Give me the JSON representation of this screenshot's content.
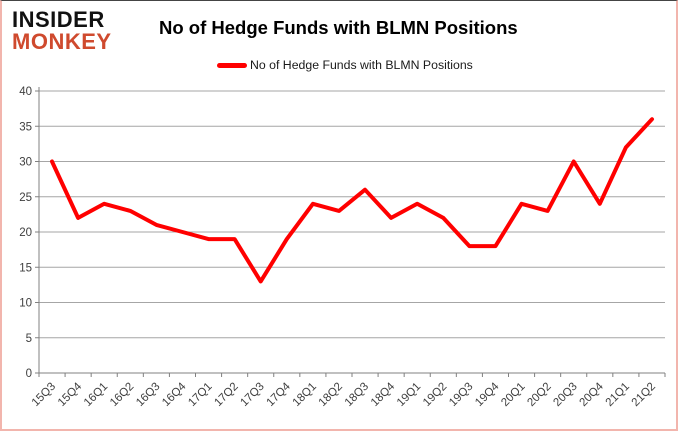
{
  "logo": {
    "line1": "INSIDER",
    "line2": "MONKEY",
    "accent_color": "#cf4a2e"
  },
  "header": {
    "title": "No of Hedge Funds with BLMN Positions"
  },
  "legend": {
    "label": "No of Hedge Funds with BLMN Positions",
    "color": "#ff0000",
    "position": "top"
  },
  "chart_data": {
    "type": "line",
    "title": "No of Hedge Funds with BLMN Positions",
    "series": [
      {
        "name": "No of Hedge Funds with BLMN Positions",
        "values": [
          30,
          22,
          24,
          23,
          21,
          20,
          19,
          19,
          13,
          19,
          24,
          23,
          26,
          22,
          24,
          22,
          18,
          18,
          24,
          23,
          30,
          24,
          32,
          36
        ]
      }
    ],
    "categories": [
      "15Q3",
      "15Q4",
      "16Q1",
      "16Q2",
      "16Q3",
      "16Q4",
      "17Q1",
      "17Q2",
      "17Q3",
      "17Q4",
      "18Q1",
      "18Q2",
      "18Q3",
      "18Q4",
      "19Q1",
      "19Q2",
      "19Q3",
      "19Q4",
      "20Q1",
      "20Q2",
      "20Q3",
      "20Q4",
      "21Q1",
      "21Q2"
    ],
    "xlabel": "",
    "ylabel": "",
    "ylim": [
      0,
      40
    ],
    "ytick_step": 5,
    "yticks": [
      0,
      5,
      10,
      15,
      20,
      25,
      30,
      35,
      40
    ],
    "grid": "horizontal",
    "legend_position": "top",
    "line_color": "#ff0000",
    "line_width": 4,
    "grid_color": "#a6a6a6",
    "axis_color": "#808080",
    "tick_label_color": "#3f3f3f"
  }
}
